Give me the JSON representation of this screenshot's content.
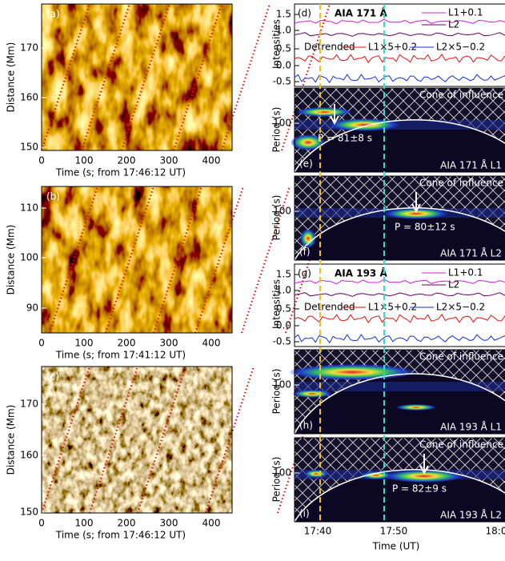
{
  "left_panels": [
    {
      "label": "(a)",
      "ylabel": "Distance (Mm)",
      "yticks": [
        "170",
        "160",
        "150"
      ],
      "xticks": [
        "0",
        "100",
        "200",
        "300",
        "400"
      ],
      "xlabel": "Time (s; from 17:46:12 UT)"
    },
    {
      "label": "(b)",
      "ylabel": "Distance (Mm)",
      "yticks": [
        "110",
        "100",
        "90"
      ],
      "xticks": [
        "0",
        "100",
        "200",
        "300",
        "400"
      ],
      "xlabel": "Time (s; from 17:41:12 UT)"
    },
    {
      "label": "(c)",
      "ylabel": "Distance (Mm)",
      "yticks": [
        "170",
        "160",
        "150"
      ],
      "xticks": [
        "0",
        "100",
        "200",
        "300",
        "400"
      ],
      "xlabel": "Time (s; from 17:46:12 UT)"
    }
  ],
  "curve_panels": [
    {
      "label": "(d)",
      "title": "AIA 171 Å",
      "ylabel": "Intensities",
      "yticks": [
        "1.5",
        "1.0",
        "0.5",
        "0.0",
        "-0.5"
      ],
      "legend": [
        "L1+0.1",
        "L2",
        "Detrended",
        "L1×5+0.2",
        "L2×5−0.2"
      ]
    },
    {
      "label": "(g)",
      "title": "AIA 193 Å",
      "ylabel": "Intensities",
      "yticks": [
        "1.5",
        "1.0",
        "0.5",
        "0.0",
        "-0.5"
      ],
      "legend": [
        "L1+0.1",
        "L2",
        "Detrended",
        "L1×5+0.2",
        "L2×5−0.2"
      ]
    }
  ],
  "wavelet_panels": [
    {
      "label": "(e)",
      "cone": "Cone of influence",
      "caption": "AIA 171 Å L1",
      "ylabel": "Period (s)",
      "ytick": "100",
      "period": "P = 81±8 s"
    },
    {
      "label": "(f)",
      "cone": "Cone of influence",
      "caption": "AIA 171 Å L2",
      "ylabel": "Period (s)",
      "ytick": "100",
      "period": "P = 80±12 s"
    },
    {
      "label": "(h)",
      "cone": "Cone of influence",
      "caption": "AIA 193 Å L1",
      "ylabel": "Period (s)",
      "ytick": "100"
    },
    {
      "label": "(i)",
      "cone": "Cone of influence",
      "caption": "AIA 193 Å L2",
      "ylabel": "Period (s)",
      "ytick": "100",
      "period": "P = 82±9 s"
    }
  ],
  "time_axis": {
    "xticks": [
      "17:40",
      "17:50",
      "18:0"
    ],
    "xlabel": "Time (UT)"
  }
}
